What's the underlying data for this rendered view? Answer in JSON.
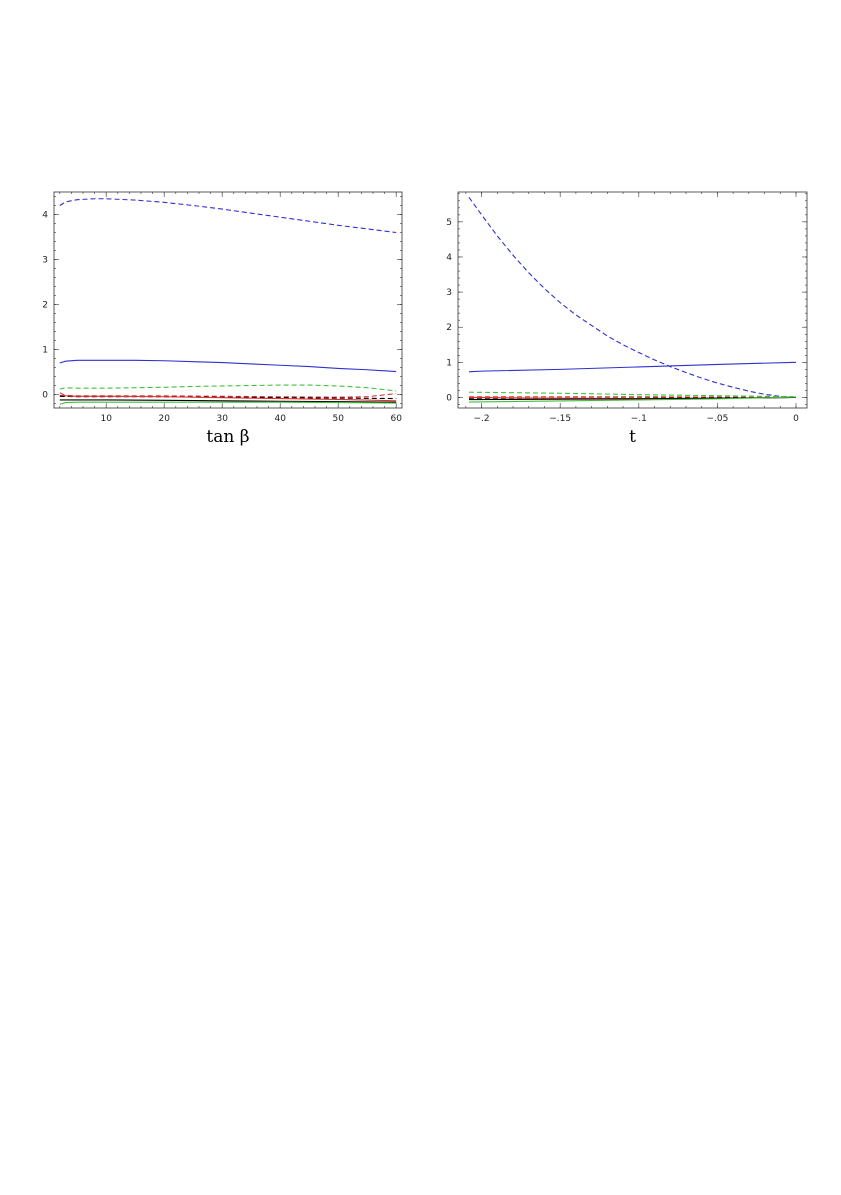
{
  "chart_data": [
    {
      "type": "line",
      "title": "",
      "xlabel": "tan β",
      "ylabel": "",
      "xlim": [
        1,
        61
      ],
      "ylim": [
        -0.3,
        4.5
      ],
      "xticks": [
        10,
        20,
        30,
        40,
        50,
        60
      ],
      "yticks": [
        0,
        1,
        2,
        3,
        4
      ],
      "grid": false,
      "series": [
        {
          "style": "dashed",
          "color": "#3030d0",
          "x": [
            2,
            3,
            5,
            8,
            10,
            15,
            20,
            25,
            30,
            35,
            40,
            45,
            50,
            55,
            60
          ],
          "y": [
            4.2,
            4.28,
            4.33,
            4.35,
            4.35,
            4.32,
            4.27,
            4.2,
            4.12,
            4.03,
            3.94,
            3.85,
            3.76,
            3.68,
            3.6
          ]
        },
        {
          "style": "solid",
          "color": "#3030d0",
          "x": [
            2,
            3,
            5,
            10,
            15,
            20,
            25,
            30,
            35,
            40,
            45,
            50,
            55,
            60
          ],
          "y": [
            0.7,
            0.74,
            0.76,
            0.76,
            0.76,
            0.75,
            0.73,
            0.71,
            0.68,
            0.65,
            0.62,
            0.58,
            0.55,
            0.51
          ]
        },
        {
          "style": "dashed",
          "color": "#40c040",
          "x": [
            2,
            3,
            5,
            10,
            15,
            20,
            25,
            30,
            35,
            40,
            45,
            50,
            55,
            60
          ],
          "y": [
            0.12,
            0.15,
            0.14,
            0.14,
            0.15,
            0.16,
            0.18,
            0.19,
            0.2,
            0.21,
            0.21,
            0.19,
            0.15,
            0.08
          ]
        },
        {
          "style": "dashed",
          "color": "#e03030",
          "x": [
            2,
            5,
            10,
            20,
            30,
            40,
            50,
            55,
            60
          ],
          "y": [
            -0.02,
            -0.03,
            -0.03,
            -0.03,
            -0.04,
            -0.05,
            -0.06,
            -0.05,
            0.02
          ]
        },
        {
          "style": "dashed",
          "color": "#000000",
          "x": [
            2,
            5,
            10,
            20,
            30,
            40,
            50,
            60
          ],
          "y": [
            -0.04,
            -0.05,
            -0.05,
            -0.05,
            -0.06,
            -0.07,
            -0.08,
            -0.09
          ]
        },
        {
          "style": "solid",
          "color": "#e03030",
          "x": [
            2,
            3,
            5,
            10,
            20,
            30,
            40,
            50,
            60
          ],
          "y": [
            0.04,
            -0.03,
            -0.04,
            -0.04,
            -0.05,
            -0.07,
            -0.09,
            -0.11,
            -0.14
          ]
        },
        {
          "style": "solid",
          "color": "#000000",
          "x": [
            2,
            10,
            20,
            30,
            40,
            50,
            60
          ],
          "y": [
            -0.12,
            -0.12,
            -0.13,
            -0.14,
            -0.15,
            -0.16,
            -0.17
          ]
        },
        {
          "style": "solid",
          "color": "#40c040",
          "x": [
            2,
            3,
            5,
            10,
            20,
            30,
            40,
            50,
            60
          ],
          "y": [
            -0.22,
            -0.18,
            -0.17,
            -0.17,
            -0.17,
            -0.17,
            -0.17,
            -0.18,
            -0.19
          ]
        }
      ]
    },
    {
      "type": "line",
      "title": "",
      "xlabel": "t",
      "ylabel": "",
      "xlim": [
        -0.215,
        0.007
      ],
      "ylim": [
        -0.3,
        5.85
      ],
      "xticks": [
        -0.2,
        -0.15,
        -0.1,
        -0.05,
        0
      ],
      "yticks": [
        0,
        1,
        2,
        3,
        4,
        5
      ],
      "grid": false,
      "series": [
        {
          "style": "dashed",
          "color": "#3030d0",
          "x": [
            -0.208,
            -0.2,
            -0.19,
            -0.18,
            -0.17,
            -0.16,
            -0.15,
            -0.14,
            -0.13,
            -0.12,
            -0.11,
            -0.1,
            -0.09,
            -0.08,
            -0.07,
            -0.06,
            -0.05,
            -0.04,
            -0.03,
            -0.02,
            -0.01,
            0
          ],
          "y": [
            5.7,
            5.2,
            4.6,
            4.05,
            3.55,
            3.1,
            2.7,
            2.35,
            2.05,
            1.75,
            1.5,
            1.28,
            1.07,
            0.88,
            0.71,
            0.55,
            0.41,
            0.29,
            0.18,
            0.09,
            0.03,
            0.0
          ]
        },
        {
          "style": "solid",
          "color": "#3030d0",
          "x": [
            -0.208,
            -0.2,
            -0.15,
            -0.1,
            -0.05,
            0
          ],
          "y": [
            0.73,
            0.75,
            0.8,
            0.87,
            0.94,
            1.0
          ]
        },
        {
          "style": "dashed",
          "color": "#40c040",
          "x": [
            -0.208,
            -0.15,
            -0.1,
            -0.05,
            0
          ],
          "y": [
            0.15,
            0.12,
            0.08,
            0.05,
            0.02
          ]
        },
        {
          "style": "dashed",
          "color": "#e03030",
          "x": [
            -0.208,
            -0.15,
            -0.1,
            -0.05,
            0
          ],
          "y": [
            0.02,
            0.02,
            0.02,
            0.01,
            0.0
          ]
        },
        {
          "style": "dashed",
          "color": "#000000",
          "x": [
            -0.208,
            -0.15,
            -0.1,
            -0.05,
            0
          ],
          "y": [
            -0.02,
            -0.02,
            -0.02,
            -0.01,
            0.0
          ]
        },
        {
          "style": "solid",
          "color": "#e03030",
          "x": [
            -0.208,
            -0.15,
            -0.1,
            -0.05,
            0
          ],
          "y": [
            0.0,
            -0.02,
            -0.03,
            -0.02,
            0.0
          ]
        },
        {
          "style": "solid",
          "color": "#000000",
          "x": [
            -0.208,
            -0.15,
            -0.1,
            -0.05,
            0
          ],
          "y": [
            -0.06,
            -0.05,
            -0.04,
            -0.02,
            0.0
          ]
        },
        {
          "style": "solid",
          "color": "#40c040",
          "x": [
            -0.208,
            -0.15,
            -0.1,
            -0.05,
            0
          ],
          "y": [
            -0.13,
            -0.1,
            -0.07,
            -0.04,
            0.01
          ]
        }
      ]
    }
  ]
}
